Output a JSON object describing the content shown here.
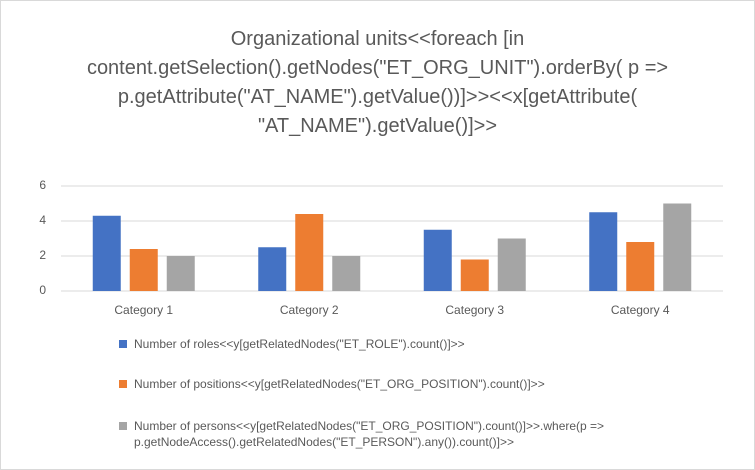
{
  "chart_data": {
    "type": "bar",
    "title": "Organizational units<<foreach [in content.getSelection().getNodes(\"ET_ORG_UNIT\").orderBy( p => p.getAttribute(\"AT_NAME\").getValue())]>><<x[getAttribute( \"AT_NAME\").getValue()]>>",
    "categories": [
      "Category 1",
      "Category 2",
      "Category 3",
      "Category 4"
    ],
    "series": [
      {
        "name": "Number of roles<<y[getRelatedNodes(\"ET_ROLE\").count()]>>",
        "color": "#4472c4",
        "values": [
          4.3,
          2.5,
          3.5,
          4.5
        ]
      },
      {
        "name": "Number of positions<<y[getRelatedNodes(\"ET_ORG_POSITION\").count()]>>",
        "color": "#ed7d31",
        "values": [
          2.4,
          4.4,
          1.8,
          2.8
        ]
      },
      {
        "name": "Number of persons<<y[getRelatedNodes(\"ET_ORG_POSITION\").count()]>>.where(p => p.getNodeAccess().getRelatedNodes(\"ET_PERSON\").any()).count()]>>",
        "color": "#a5a5a5",
        "values": [
          2,
          2,
          3,
          5
        ]
      }
    ],
    "ylim": [
      0,
      6
    ],
    "yticks": [
      0,
      2,
      4,
      6
    ],
    "grid": true
  }
}
